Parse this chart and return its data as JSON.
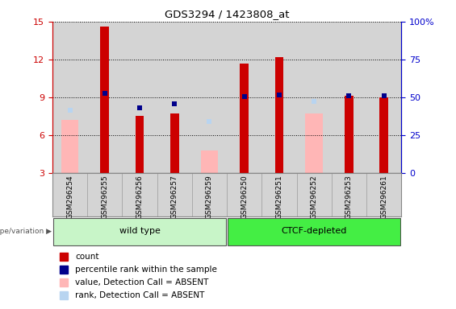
{
  "title": "GDS3294 / 1423808_at",
  "samples": [
    "GSM296254",
    "GSM296255",
    "GSM296256",
    "GSM296257",
    "GSM296259",
    "GSM296250",
    "GSM296251",
    "GSM296252",
    "GSM296253",
    "GSM296261"
  ],
  "groups": [
    {
      "label": "wild type",
      "count": 5,
      "color": "#c8f5c8"
    },
    {
      "label": "CTCF-depleted",
      "count": 5,
      "color": "#44ee44"
    }
  ],
  "group_label": "genotype/variation",
  "red_bars": [
    null,
    14.6,
    7.5,
    7.7,
    null,
    11.7,
    12.2,
    null,
    9.1,
    9.0
  ],
  "pink_bars": [
    7.2,
    null,
    null,
    null,
    4.8,
    null,
    null,
    7.7,
    null,
    null
  ],
  "blue_squares": [
    null,
    9.3,
    8.15,
    8.5,
    null,
    9.05,
    9.2,
    null,
    9.1,
    9.1
  ],
  "light_blue_squares": [
    8.0,
    null,
    null,
    null,
    7.1,
    null,
    null,
    8.7,
    null,
    null
  ],
  "ylim_left": [
    3,
    15
  ],
  "ylim_right": [
    0,
    100
  ],
  "yticks_left": [
    3,
    6,
    9,
    12,
    15
  ],
  "yticks_right": [
    0,
    25,
    50,
    75,
    100
  ],
  "yticklabels_right": [
    "0",
    "25",
    "50",
    "75",
    "100%"
  ],
  "left_axis_color": "#cc0000",
  "right_axis_color": "#0000cc",
  "legend_items": [
    {
      "label": "count",
      "color": "#cc0000"
    },
    {
      "label": "percentile rank within the sample",
      "color": "#00008b"
    },
    {
      "label": "value, Detection Call = ABSENT",
      "color": "#ffb6b6"
    },
    {
      "label": "rank, Detection Call = ABSENT",
      "color": "#b8d4f0"
    }
  ]
}
